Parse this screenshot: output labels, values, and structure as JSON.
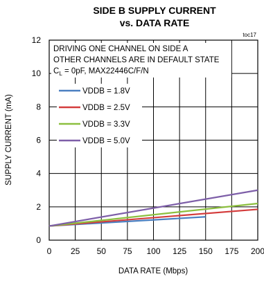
{
  "chart_data": {
    "type": "line",
    "title": "SIDE B SUPPLY CURRENT",
    "subtitle": "vs. DATA RATE",
    "code": "toc17",
    "annotation": {
      "line1": "DRIVING ONE CHANNEL ON SIDE A",
      "line2": "OTHER CHANNELS ARE IN DEFAULT STATE",
      "line3_prefix": "C",
      "line3_sub": "L",
      "line3_suffix": " = 0pF, MAX22446C/F/N"
    },
    "xlabel": "DATA RATE (Mbps)",
    "ylabel": "SUPPLY CURRENT (mA)",
    "xlim": [
      0,
      200
    ],
    "ylim": [
      0,
      12
    ],
    "xticks": [
      0,
      25,
      50,
      75,
      100,
      125,
      150,
      175,
      200
    ],
    "yticks": [
      0,
      2,
      4,
      6,
      8,
      10,
      12
    ],
    "grid": true,
    "legend_position": "left",
    "series": [
      {
        "name": "VDDB = 1.8V",
        "color": "#4a7fc1",
        "x": [
          0,
          150
        ],
        "y": [
          0.85,
          1.4
        ]
      },
      {
        "name": "VDDB = 2.5V",
        "color": "#d43c3c",
        "x": [
          0,
          200
        ],
        "y": [
          0.85,
          1.85
        ]
      },
      {
        "name": "VDDB = 3.3V",
        "color": "#8cbf3f",
        "x": [
          0,
          200
        ],
        "y": [
          0.85,
          2.2
        ]
      },
      {
        "name": "VDDB = 5.0V",
        "color": "#7d5ea8",
        "x": [
          0,
          200
        ],
        "y": [
          0.85,
          3.0
        ]
      }
    ]
  }
}
